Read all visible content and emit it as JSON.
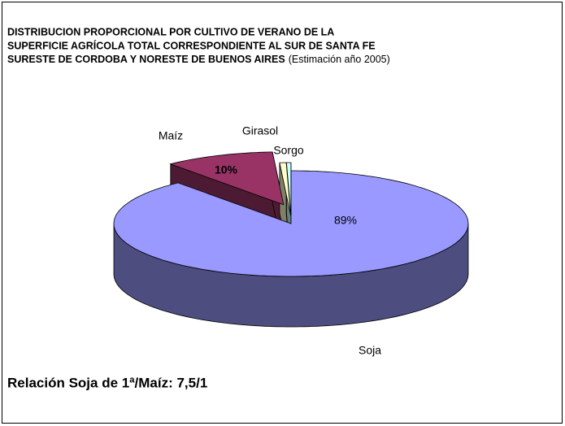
{
  "chart_data": {
    "type": "pie",
    "title": [
      "DISTRIBUCION PROPORCIONAL POR CULTIVO DE VERANO DE LA",
      "SUPERFICIE AGRÍCOLA TOTAL CORRESPONDIENTE AL SUR DE SANTA FE",
      "SURESTE DE CORDOBA Y NORESTE DE BUENOS AIRES"
    ],
    "title_note": "(Estimación año 2005)",
    "categories": [
      "Soja",
      "Maíz",
      "Girasol",
      "Sorgo"
    ],
    "values": [
      89,
      10,
      0.6,
      0.4
    ],
    "value_labels": [
      "89%",
      "10%",
      null,
      null
    ],
    "colors": [
      "#9999ff",
      "#993366",
      "#ffffcc",
      "#ccffff"
    ],
    "annotation": "Relación Soja de 1ª/Maíz: 7,5/1"
  }
}
